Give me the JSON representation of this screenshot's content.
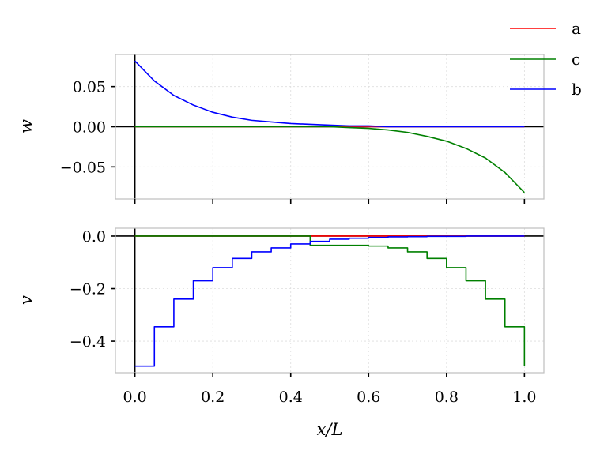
{
  "chart_data": [
    {
      "type": "line",
      "ylabel": "w",
      "xlim": [
        -0.05,
        1.05
      ],
      "ylim": [
        -0.09,
        0.09
      ],
      "yticks": [
        0.05,
        0.0,
        -0.05
      ],
      "ytick_labels": [
        "0.05",
        "0.00",
        "−0.05"
      ],
      "grid": true,
      "x": [
        0.0,
        0.05,
        0.1,
        0.15,
        0.2,
        0.25,
        0.3,
        0.35,
        0.4,
        0.45,
        0.5,
        0.55,
        0.6,
        0.65,
        0.7,
        0.75,
        0.8,
        0.85,
        0.9,
        0.95,
        1.0
      ],
      "series": [
        {
          "name": "a",
          "color": "#ff0000",
          "values": [
            0,
            0,
            0,
            0,
            0,
            0,
            0,
            0,
            0,
            0,
            0,
            0,
            0,
            0,
            0,
            0,
            0,
            0,
            0,
            0,
            0
          ]
        },
        {
          "name": "c",
          "color": "#008000",
          "values": [
            0,
            0,
            0,
            0,
            0,
            0,
            0,
            0,
            0,
            0,
            0,
            -0.001,
            -0.002,
            -0.004,
            -0.007,
            -0.012,
            -0.018,
            -0.027,
            -0.039,
            -0.057,
            -0.082
          ]
        },
        {
          "name": "b",
          "color": "#0000ff",
          "values": [
            0.082,
            0.057,
            0.039,
            0.027,
            0.018,
            0.012,
            0.008,
            0.006,
            0.004,
            0.003,
            0.002,
            0.001,
            0.001,
            0,
            0,
            0,
            0,
            0,
            0,
            0,
            0
          ]
        }
      ]
    },
    {
      "type": "line",
      "step": true,
      "ylabel": "v",
      "xlabel": "x/L",
      "xlim": [
        -0.05,
        1.05
      ],
      "ylim": [
        -0.52,
        0.03
      ],
      "xticks": [
        0.0,
        0.2,
        0.4,
        0.6,
        0.8,
        1.0
      ],
      "xtick_labels": [
        "0.0",
        "0.2",
        "0.4",
        "0.6",
        "0.8",
        "1.0"
      ],
      "yticks": [
        0.0,
        -0.2,
        -0.4
      ],
      "ytick_labels": [
        "0.0",
        "−0.2",
        "−0.4"
      ],
      "grid": true,
      "x": [
        0.0,
        0.05,
        0.1,
        0.15,
        0.2,
        0.25,
        0.3,
        0.35,
        0.4,
        0.45,
        0.5,
        0.55,
        0.6,
        0.65,
        0.7,
        0.75,
        0.8,
        0.85,
        0.9,
        0.95,
        1.0
      ],
      "series": [
        {
          "name": "a",
          "color": "#ff0000",
          "values": [
            0,
            0,
            0,
            0,
            0,
            0,
            0,
            0,
            0,
            0,
            0,
            0,
            0,
            0,
            0,
            0,
            0,
            0,
            0,
            0,
            0
          ]
        },
        {
          "name": "c",
          "color": "#008000",
          "values": [
            0,
            0,
            0,
            0,
            0,
            0,
            0,
            0,
            0,
            -0.035,
            -0.035,
            -0.035,
            -0.038,
            -0.045,
            -0.06,
            -0.085,
            -0.12,
            -0.17,
            -0.24,
            -0.345,
            -0.495
          ]
        },
        {
          "name": "b",
          "color": "#0000ff",
          "values": [
            -0.495,
            -0.345,
            -0.24,
            -0.17,
            -0.12,
            -0.085,
            -0.06,
            -0.045,
            -0.03,
            -0.02,
            -0.012,
            -0.008,
            -0.005,
            -0.003,
            -0.002,
            -0.001,
            -0.001,
            0,
            0,
            0,
            0
          ]
        }
      ]
    }
  ],
  "legend": {
    "placement": "top-right",
    "entries": [
      {
        "label": "a",
        "color": "#ff0000"
      },
      {
        "label": "c",
        "color": "#008000"
      },
      {
        "label": "b",
        "color": "#0000ff"
      }
    ]
  }
}
